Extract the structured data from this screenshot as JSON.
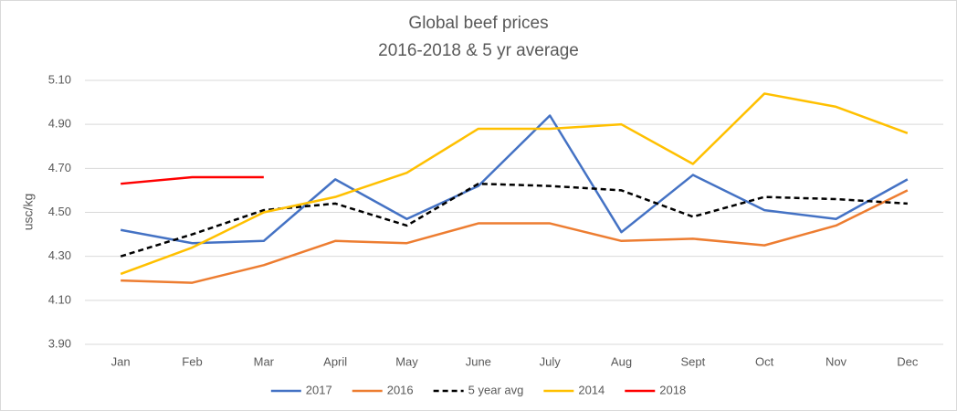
{
  "chart_data": {
    "type": "line",
    "title": "Global beef prices",
    "subtitle": "2016-2018 & 5 yr average",
    "ylabel": "usc/kg",
    "categories": [
      "Jan",
      "Feb",
      "Mar",
      "April",
      "May",
      "June",
      "July",
      "Aug",
      "Sept",
      "Oct",
      "Nov",
      "Dec"
    ],
    "ylim": [
      3.9,
      5.1
    ],
    "yticks": [
      {
        "value": 3.9,
        "label": "3.90"
      },
      {
        "value": 4.1,
        "label": "4.10"
      },
      {
        "value": 4.3,
        "label": "4.30"
      },
      {
        "value": 4.5,
        "label": "4.50"
      },
      {
        "value": 4.7,
        "label": "4.70"
      },
      {
        "value": 4.9,
        "label": "4.90"
      },
      {
        "value": 5.1,
        "label": "5.10"
      }
    ],
    "grid": true,
    "legend": "bottom",
    "series": [
      {
        "name": "2017",
        "color": "#4472c4",
        "values": [
          4.42,
          4.36,
          4.37,
          4.65,
          4.47,
          4.62,
          4.94,
          4.41,
          4.67,
          4.51,
          4.47,
          4.65
        ]
      },
      {
        "name": "2016",
        "color": "#ed7d31",
        "values": [
          4.19,
          4.18,
          4.26,
          4.37,
          4.36,
          4.45,
          4.45,
          4.37,
          4.38,
          4.35,
          4.44,
          4.6
        ]
      },
      {
        "name": "5 year avg",
        "color": "#000000",
        "dash": true,
        "values": [
          4.3,
          4.4,
          4.51,
          4.54,
          4.44,
          4.63,
          4.62,
          4.6,
          4.48,
          4.57,
          4.56,
          4.54
        ]
      },
      {
        "name": "2014",
        "color": "#ffc000",
        "values": [
          4.22,
          4.34,
          4.5,
          4.57,
          4.68,
          4.88,
          4.88,
          4.9,
          4.72,
          5.04,
          4.98,
          4.86
        ]
      },
      {
        "name": "2018",
        "color": "#ff0000",
        "values": [
          4.63,
          4.66,
          4.66,
          null,
          null,
          null,
          null,
          null,
          null,
          null,
          null,
          null
        ]
      }
    ]
  }
}
